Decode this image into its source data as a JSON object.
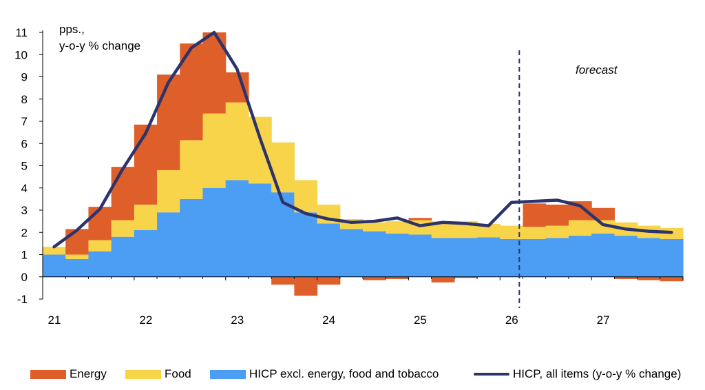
{
  "chart_data": {
    "type": "bar",
    "stacked": true,
    "unit_label": [
      "pps.,",
      "y-o-y % change"
    ],
    "forecast_label": "forecast",
    "x_ticks": [
      "21",
      "22",
      "23",
      "24",
      "25",
      "26",
      "27"
    ],
    "y_ticks": [
      "-1",
      "0",
      "1",
      "2",
      "3",
      "4",
      "5",
      "6",
      "7",
      "8",
      "9",
      "10",
      "11"
    ],
    "ylim": [
      -1,
      11
    ],
    "forecast_start": "2026Q1",
    "grid": false,
    "legend_position": "bottom",
    "categories": [
      "2021Q1",
      "2021Q2",
      "2021Q3",
      "2021Q4",
      "2022Q1",
      "2022Q2",
      "2022Q3",
      "2022Q4",
      "2023Q1",
      "2023Q2",
      "2023Q3",
      "2023Q4",
      "2024Q1",
      "2024Q2",
      "2024Q3",
      "2024Q4",
      "2025Q1",
      "2025Q2",
      "2025Q3",
      "2025Q4",
      "2026Q1",
      "2026Q2",
      "2026Q3",
      "2026Q4",
      "2027Q1",
      "2027Q2",
      "2027Q3",
      "2027Q4"
    ],
    "series": [
      {
        "name": "HICP excl. energy, food and tobacco",
        "kind": "bar",
        "color": "#4b9ef3",
        "values": [
          1.0,
          0.8,
          1.15,
          1.8,
          2.1,
          2.9,
          3.5,
          4.0,
          4.35,
          4.2,
          3.8,
          2.9,
          2.4,
          2.15,
          2.05,
          1.95,
          1.9,
          1.75,
          1.75,
          1.78,
          1.7,
          1.7,
          1.75,
          1.85,
          1.95,
          1.85,
          1.75,
          1.7
        ]
      },
      {
        "name": "Food",
        "kind": "bar",
        "color": "#f7d44a",
        "values": [
          0.35,
          0.2,
          0.5,
          0.75,
          1.15,
          1.9,
          2.65,
          3.35,
          3.5,
          3.0,
          2.25,
          1.45,
          0.85,
          0.45,
          0.4,
          0.55,
          0.65,
          0.75,
          0.75,
          0.6,
          0.6,
          0.55,
          0.55,
          0.7,
          0.6,
          0.6,
          0.55,
          0.5
        ]
      },
      {
        "name": "Energy",
        "kind": "bar",
        "color": "#df5f2b",
        "values": [
          0.0,
          1.15,
          1.5,
          2.4,
          3.6,
          4.3,
          4.35,
          3.65,
          1.35,
          0.0,
          -0.35,
          -0.85,
          -0.35,
          0.0,
          -0.15,
          -0.1,
          0.1,
          -0.25,
          -0.05,
          0.0,
          0.0,
          1.05,
          0.95,
          0.85,
          0.55,
          -0.1,
          -0.15,
          -0.2
        ]
      },
      {
        "name": "HICP, all items (y-o-y % change)",
        "kind": "line",
        "color": "#2d336b",
        "values": [
          1.35,
          2.1,
          3.05,
          4.85,
          6.45,
          8.75,
          10.3,
          11.0,
          9.35,
          6.25,
          3.35,
          2.85,
          2.6,
          2.45,
          2.5,
          2.65,
          2.3,
          2.45,
          2.4,
          2.3,
          3.35,
          3.4,
          3.45,
          3.2,
          2.35,
          2.15,
          2.05,
          2.0
        ]
      }
    ]
  },
  "legend": [
    {
      "label": "Energy",
      "color": "#df5f2b",
      "kind": "swatch"
    },
    {
      "label": "Food",
      "color": "#f7d44a",
      "kind": "swatch"
    },
    {
      "label": "HICP excl. energy, food and tobacco",
      "color": "#4b9ef3",
      "kind": "swatch"
    },
    {
      "label": "HICP, all items (y-o-y % change)",
      "color": "#2d336b",
      "kind": "line"
    }
  ]
}
